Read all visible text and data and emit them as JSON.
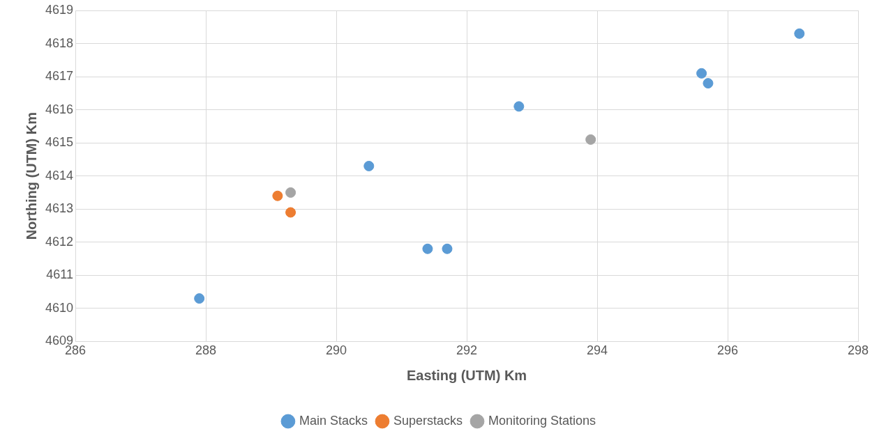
{
  "chart_data": {
    "type": "scatter",
    "xlabel": "Easting (UTM) Km",
    "ylabel": "Northing (UTM) Km",
    "xlim": [
      286,
      298
    ],
    "xticks": [
      286,
      288,
      290,
      292,
      294,
      296,
      298
    ],
    "ylim": [
      4609,
      4619
    ],
    "yticks": [
      4609,
      4610,
      4611,
      4612,
      4613,
      4614,
      4615,
      4616,
      4617,
      4618,
      4619
    ],
    "grid": true,
    "legend": "bottom",
    "marker": "circle",
    "series": [
      {
        "name": "Main Stacks",
        "color": "#5b9bd5",
        "x": [
          287.9,
          290.5,
          291.4,
          291.7,
          292.8,
          295.6,
          295.7,
          297.1
        ],
        "values": [
          4610.3,
          4614.3,
          4611.8,
          4611.8,
          4616.1,
          4617.1,
          4616.8,
          4618.3
        ]
      },
      {
        "name": "Superstacks",
        "color": "#ed7d31",
        "x": [
          289.1,
          289.3
        ],
        "values": [
          4613.4,
          4612.9
        ]
      },
      {
        "name": "Monitoring Stations",
        "color": "#a5a5a5",
        "x": [
          289.3,
          293.9
        ],
        "values": [
          4613.5,
          4615.1
        ]
      }
    ]
  }
}
